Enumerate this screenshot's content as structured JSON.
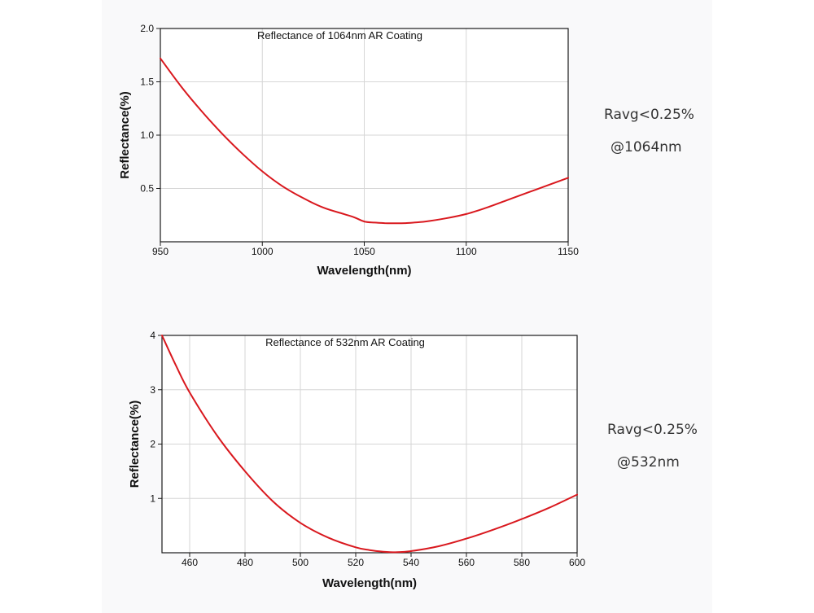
{
  "chart_data": [
    {
      "type": "line",
      "title": "Reflectance of 1064nm AR Coating",
      "xlabel": "Wavelength(nm)",
      "ylabel": "Reflectance(%)",
      "xlim": [
        950,
        1150
      ],
      "ylim": [
        0,
        2.0
      ],
      "xticks": [
        950,
        1000,
        1050,
        1100,
        1150
      ],
      "yticks": [
        0.5,
        1.0,
        1.5,
        2.0
      ],
      "ytick_labels": [
        "0.5",
        "1.0",
        "1.5",
        "2.0"
      ],
      "grid": true,
      "line_color": "#d9181e",
      "series": [
        {
          "x": [
            950,
            960,
            970,
            980,
            990,
            1000,
            1010,
            1020,
            1030,
            1040,
            1045,
            1050,
            1055,
            1060,
            1065,
            1070,
            1080,
            1090,
            1100,
            1110,
            1120,
            1130,
            1140,
            1150
          ],
          "values": [
            1.72,
            1.46,
            1.23,
            1.02,
            0.83,
            0.66,
            0.52,
            0.41,
            0.32,
            0.26,
            0.23,
            0.19,
            0.18,
            0.175,
            0.173,
            0.175,
            0.19,
            0.22,
            0.26,
            0.32,
            0.39,
            0.46,
            0.53,
            0.6
          ]
        }
      ],
      "annotation": [
        "Ravg<0.25%",
        "@1064nm"
      ]
    },
    {
      "type": "line",
      "title": "Reflectance of 532nm AR Coating",
      "xlabel": "Wavelength(nm)",
      "ylabel": "Reflectance(%)",
      "xlim": [
        450,
        600
      ],
      "ylim": [
        0,
        4
      ],
      "xticks": [
        460,
        480,
        500,
        520,
        540,
        560,
        580,
        600
      ],
      "yticks": [
        1,
        2,
        3,
        4
      ],
      "ytick_labels": [
        "1",
        "2",
        "3",
        "4"
      ],
      "grid": true,
      "line_color": "#d9181e",
      "series": [
        {
          "x": [
            450,
            455,
            460,
            470,
            480,
            490,
            500,
            510,
            520,
            525,
            530,
            535,
            540,
            550,
            560,
            570,
            580,
            590,
            600
          ],
          "values": [
            4.0,
            3.45,
            2.95,
            2.15,
            1.5,
            0.95,
            0.55,
            0.28,
            0.1,
            0.05,
            0.02,
            0.01,
            0.03,
            0.12,
            0.26,
            0.43,
            0.62,
            0.83,
            1.07
          ]
        }
      ],
      "annotation": [
        "Ravg<0.25%",
        "@532nm"
      ]
    }
  ]
}
